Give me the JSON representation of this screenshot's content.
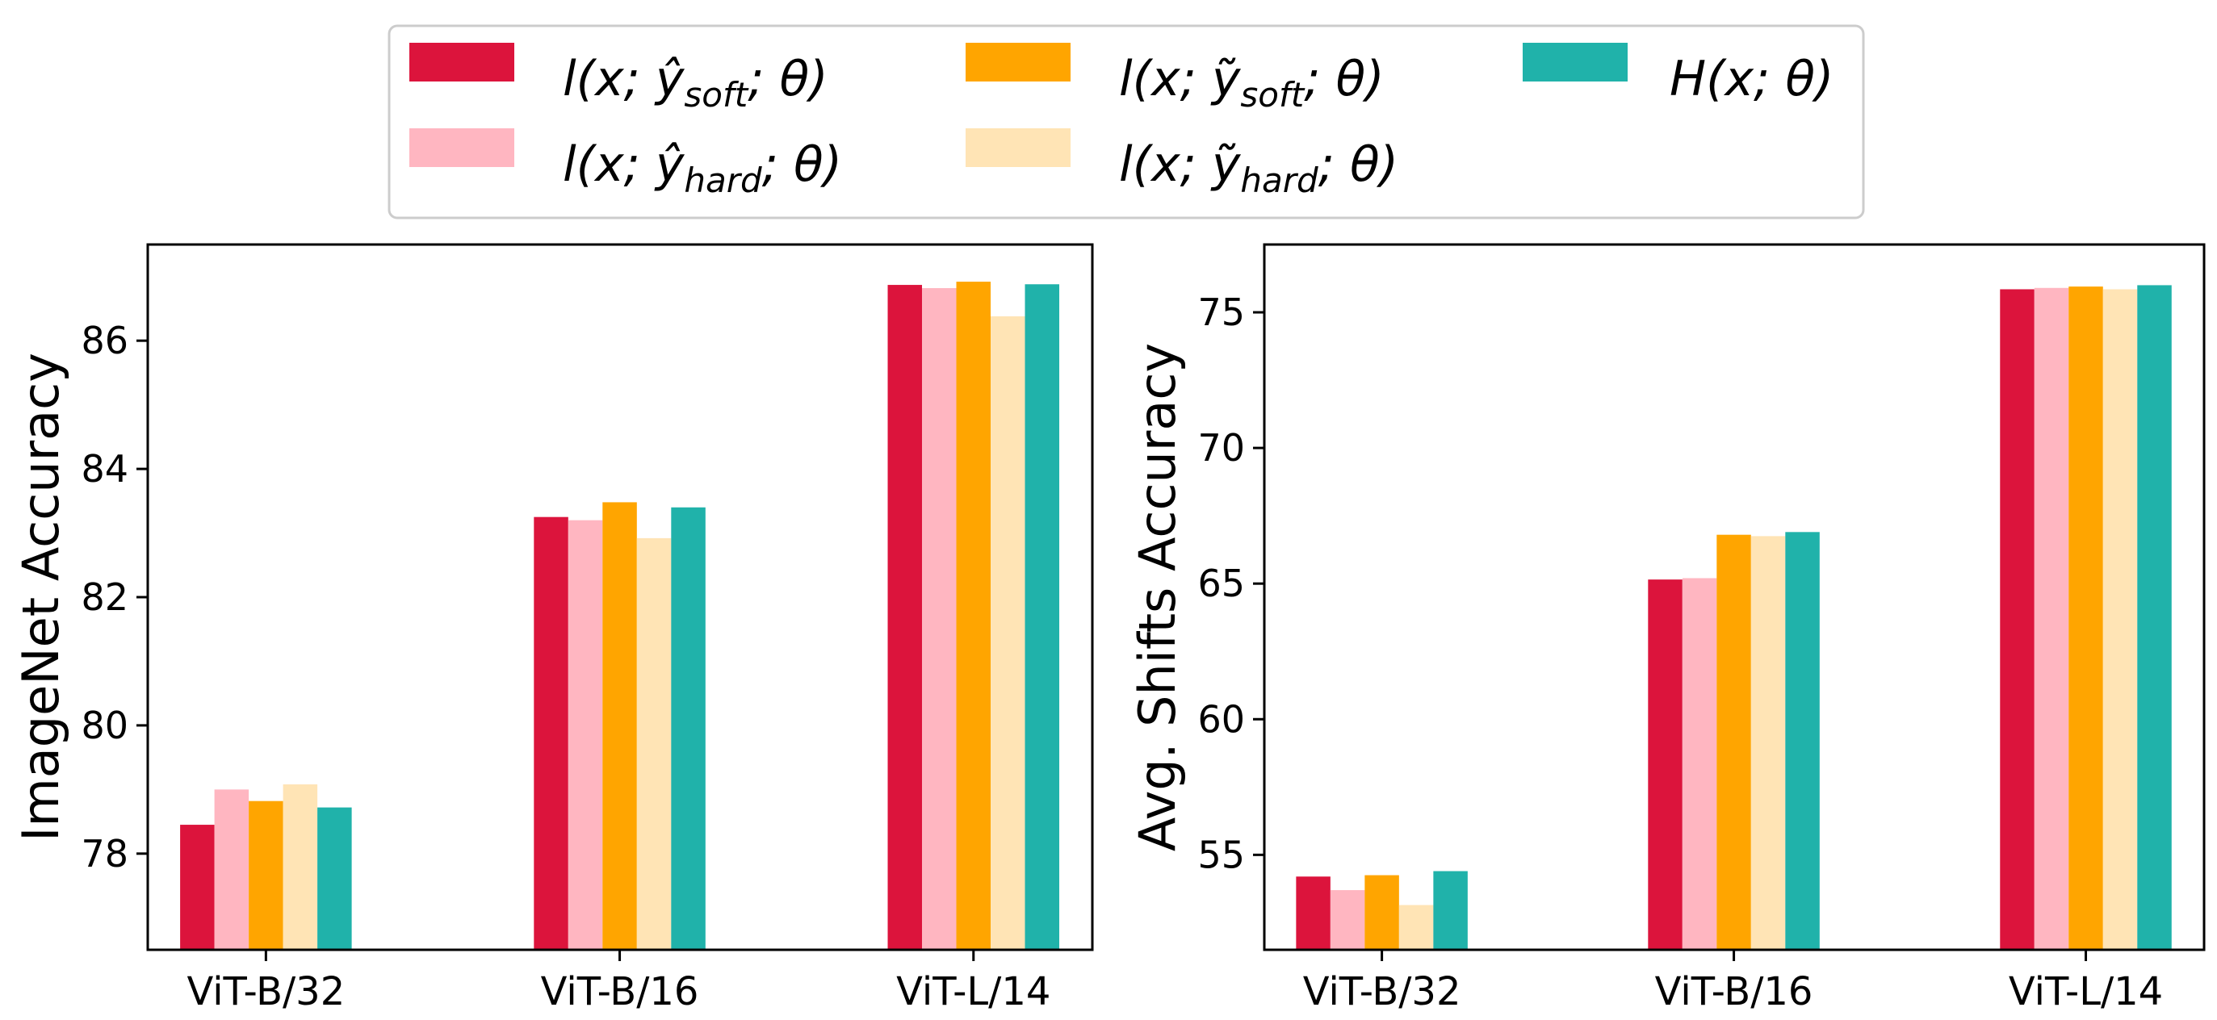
{
  "legend": {
    "placement": "top-center",
    "entries": [
      {
        "series": 0,
        "base": "l(x; ",
        "mark": "ŷ",
        "sub": "soft",
        "rest": "; θ)"
      },
      {
        "series": 1,
        "base": "l(x; ",
        "mark": "ŷ",
        "sub": "hard",
        "rest": "; θ)"
      },
      {
        "series": 2,
        "base": "l(x; ",
        "mark": "ỹ",
        "sub": "soft",
        "rest": "; θ)"
      },
      {
        "series": 3,
        "base": "l(x; ",
        "mark": "ỹ",
        "sub": "hard",
        "rest": "; θ)"
      },
      {
        "series": 4,
        "base": "H(x; θ)",
        "mark": "",
        "sub": "",
        "rest": ""
      }
    ]
  },
  "chart_data": [
    {
      "type": "bar",
      "title": "",
      "xlabel": "",
      "ylabel": "ImageNet Accuracy",
      "ylim": [
        76.5,
        87.5
      ],
      "yticks": [
        78,
        80,
        82,
        84,
        86
      ],
      "categories": [
        "ViT-B/32",
        "ViT-B/16",
        "ViT-L/14"
      ],
      "series": [
        {
          "name": "l(x; ŷ_soft; θ)",
          "color": "#dc143c",
          "values": [
            78.45,
            83.25,
            86.87
          ]
        },
        {
          "name": "l(x; ŷ_hard; θ)",
          "color": "#ffb6c1",
          "values": [
            79.0,
            83.2,
            86.82
          ]
        },
        {
          "name": "l(x; ỹ_soft; θ)",
          "color": "#ffa500",
          "values": [
            78.82,
            83.48,
            86.92
          ]
        },
        {
          "name": "l(x; ỹ_hard; θ)",
          "color": "#ffe4b5",
          "values": [
            79.08,
            82.92,
            86.38
          ]
        },
        {
          "name": "H(x; θ)",
          "color": "#20b2aa",
          "values": [
            78.72,
            83.4,
            86.88
          ]
        }
      ]
    },
    {
      "type": "bar",
      "title": "",
      "xlabel": "",
      "ylabel": "Avg. Shifts Accuracy",
      "ylim": [
        51.5,
        77.5
      ],
      "yticks": [
        55,
        60,
        65,
        70,
        75
      ],
      "categories": [
        "ViT-B/32",
        "ViT-B/16",
        "ViT-L/14"
      ],
      "series": [
        {
          "name": "l(x; ŷ_soft; θ)",
          "color": "#dc143c",
          "values": [
            54.2,
            65.15,
            75.85
          ]
        },
        {
          "name": "l(x; ŷ_hard; θ)",
          "color": "#ffb6c1",
          "values": [
            53.7,
            65.2,
            75.9
          ]
        },
        {
          "name": "l(x; ỹ_soft; θ)",
          "color": "#ffa500",
          "values": [
            54.25,
            66.8,
            75.95
          ]
        },
        {
          "name": "l(x; ỹ_hard; θ)",
          "color": "#ffe4b5",
          "values": [
            53.15,
            66.75,
            75.85
          ]
        },
        {
          "name": "H(x; θ)",
          "color": "#20b2aa",
          "values": [
            54.4,
            66.9,
            76.0
          ]
        }
      ]
    }
  ]
}
